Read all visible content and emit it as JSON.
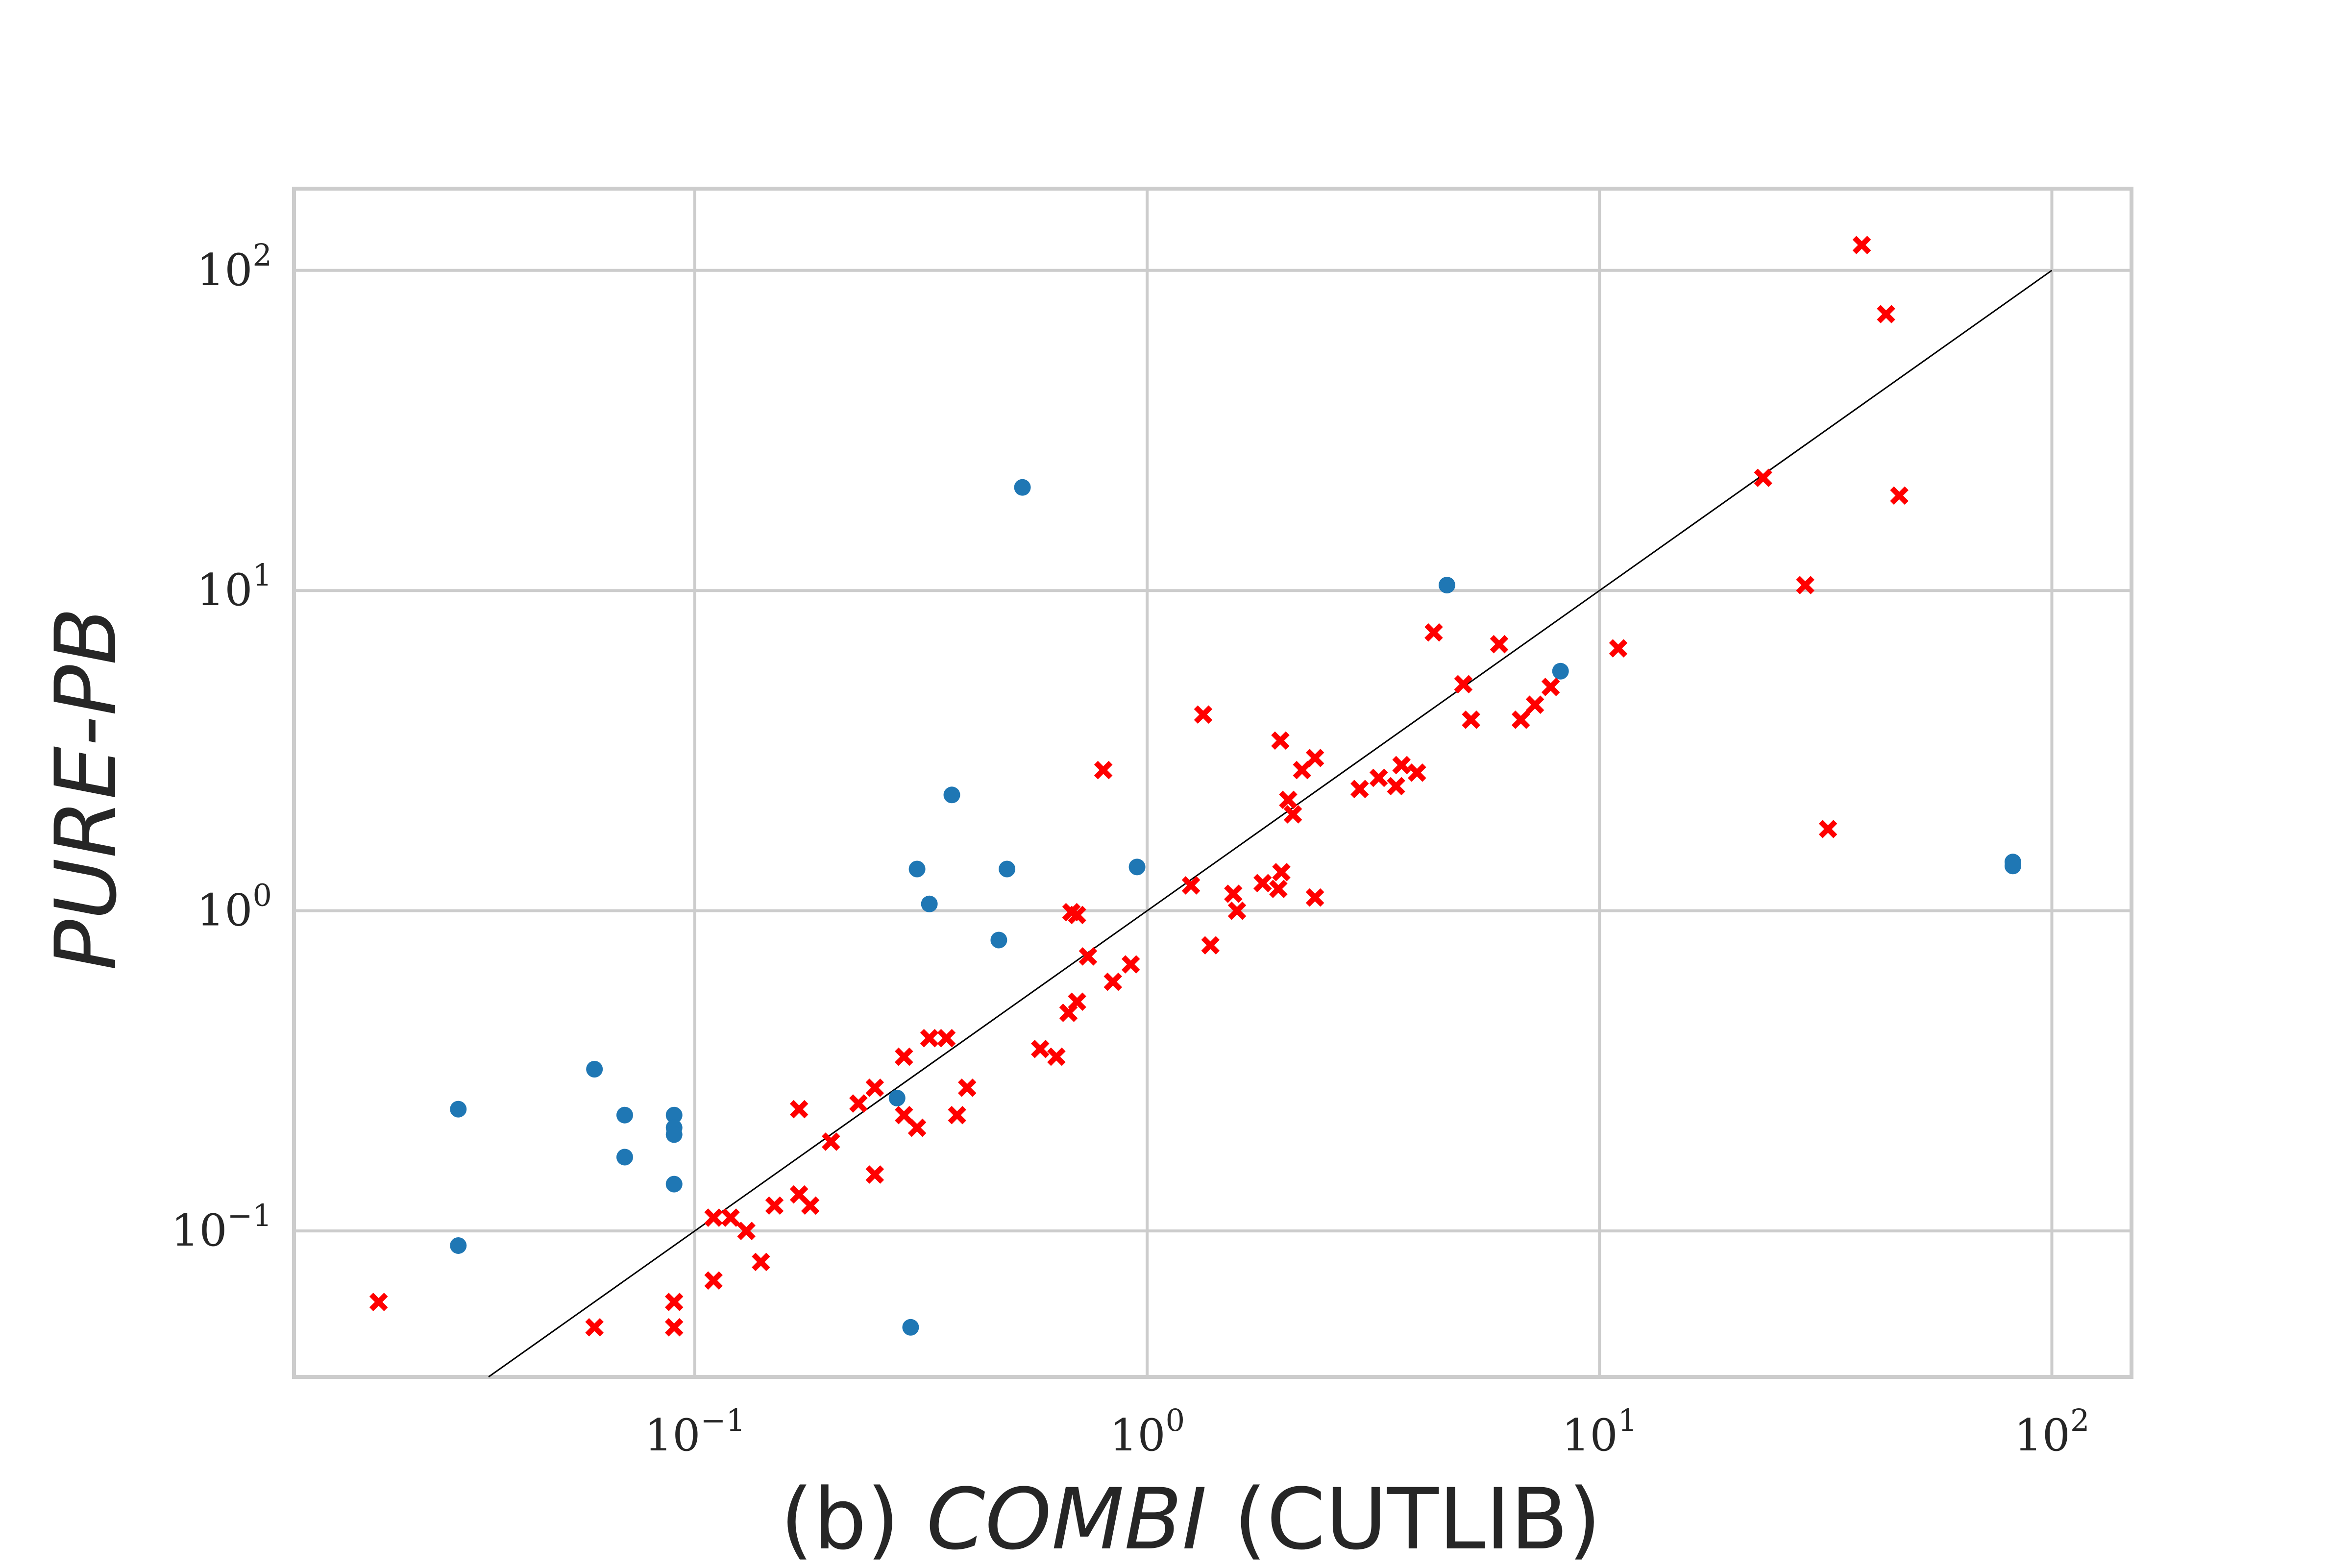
{
  "chart_data": {
    "type": "scatter",
    "title": "",
    "xlabel": {
      "prefix": "(b) ",
      "italic": "COMBI",
      "suffix": " (CUTLIB)"
    },
    "ylabel": "PURE-PB",
    "xscale": "log",
    "yscale": "log",
    "xlim": [
      0.013,
      150
    ],
    "ylim": [
      0.035,
      180
    ],
    "xticks": [
      {
        "value": 0.1,
        "base": "10",
        "exp": "−1"
      },
      {
        "value": 1,
        "base": "10",
        "exp": "0"
      },
      {
        "value": 10,
        "base": "10",
        "exp": "1"
      },
      {
        "value": 100,
        "base": "10",
        "exp": "2"
      }
    ],
    "yticks": [
      {
        "value": 0.1,
        "base": "10",
        "exp": "−1"
      },
      {
        "value": 1,
        "base": "10",
        "exp": "0"
      },
      {
        "value": 10,
        "base": "10",
        "exp": "1"
      },
      {
        "value": 100,
        "base": "10",
        "exp": "2"
      }
    ],
    "grid": true,
    "reference_line": {
      "from": [
        0.035,
        0.035
      ],
      "to": [
        100,
        100
      ],
      "color": "#000000"
    },
    "series": [
      {
        "marker": "circle",
        "color": "#1f77b4",
        "points": [
          [
            0.03,
            0.24
          ],
          [
            0.03,
            0.09
          ],
          [
            0.06,
            0.32
          ],
          [
            0.07,
            0.23
          ],
          [
            0.07,
            0.17
          ],
          [
            0.09,
            0.23
          ],
          [
            0.09,
            0.21
          ],
          [
            0.09,
            0.2
          ],
          [
            0.09,
            0.14
          ],
          [
            0.28,
            0.26
          ],
          [
            0.3,
            0.05
          ],
          [
            0.31,
            1.35
          ],
          [
            0.33,
            1.05
          ],
          [
            0.37,
            2.3
          ],
          [
            0.47,
            0.81
          ],
          [
            0.49,
            1.35
          ],
          [
            0.53,
            21.0
          ],
          [
            0.95,
            1.37
          ],
          [
            4.6,
            10.4
          ],
          [
            8.2,
            5.6
          ],
          [
            82.0,
            1.38
          ],
          [
            82.0,
            1.42
          ]
        ]
      },
      {
        "marker": "x",
        "color": "#ff0000",
        "points": [
          [
            0.02,
            0.06
          ],
          [
            0.06,
            0.05
          ],
          [
            0.09,
            0.06
          ],
          [
            0.09,
            0.05
          ],
          [
            0.11,
            0.11
          ],
          [
            0.11,
            0.07
          ],
          [
            0.12,
            0.11
          ],
          [
            0.13,
            0.1
          ],
          [
            0.14,
            0.08
          ],
          [
            0.15,
            0.12
          ],
          [
            0.17,
            0.13
          ],
          [
            0.17,
            0.24
          ],
          [
            0.18,
            0.12
          ],
          [
            0.2,
            0.19
          ],
          [
            0.23,
            0.25
          ],
          [
            0.25,
            0.28
          ],
          [
            0.25,
            0.15
          ],
          [
            0.29,
            0.35
          ],
          [
            0.29,
            0.23
          ],
          [
            0.31,
            0.21
          ],
          [
            0.33,
            0.4
          ],
          [
            0.36,
            0.4
          ],
          [
            0.38,
            0.23
          ],
          [
            0.4,
            0.28
          ],
          [
            0.58,
            0.37
          ],
          [
            0.63,
            0.35
          ],
          [
            0.67,
            0.48
          ],
          [
            0.68,
            0.99
          ],
          [
            0.7,
            0.97
          ],
          [
            0.7,
            0.52
          ],
          [
            0.74,
            0.72
          ],
          [
            0.8,
            2.75
          ],
          [
            0.84,
            0.6
          ],
          [
            0.92,
            0.68
          ],
          [
            1.25,
            1.2
          ],
          [
            1.33,
            4.1
          ],
          [
            1.38,
            0.78
          ],
          [
            1.55,
            1.13
          ],
          [
            1.58,
            1.0
          ],
          [
            1.8,
            1.22
          ],
          [
            1.95,
            1.17
          ],
          [
            1.97,
            3.4
          ],
          [
            1.98,
            1.32
          ],
          [
            2.05,
            2.22
          ],
          [
            2.1,
            2.0
          ],
          [
            2.2,
            2.75
          ],
          [
            2.35,
            1.1
          ],
          [
            2.35,
            3.0
          ],
          [
            2.95,
            2.4
          ],
          [
            3.25,
            2.6
          ],
          [
            3.55,
            2.45
          ],
          [
            3.65,
            2.85
          ],
          [
            3.95,
            2.7
          ],
          [
            4.3,
            7.4
          ],
          [
            5.0,
            5.1
          ],
          [
            5.2,
            3.95
          ],
          [
            6.0,
            6.8
          ],
          [
            6.7,
            3.95
          ],
          [
            7.2,
            4.4
          ],
          [
            7.8,
            5.0
          ],
          [
            11.0,
            6.6
          ],
          [
            23.0,
            22.5
          ],
          [
            28.5,
            10.4
          ],
          [
            32.0,
            1.8
          ],
          [
            38.0,
            120.0
          ],
          [
            43.0,
            73.0
          ],
          [
            46.0,
            19.8
          ]
        ]
      }
    ]
  }
}
